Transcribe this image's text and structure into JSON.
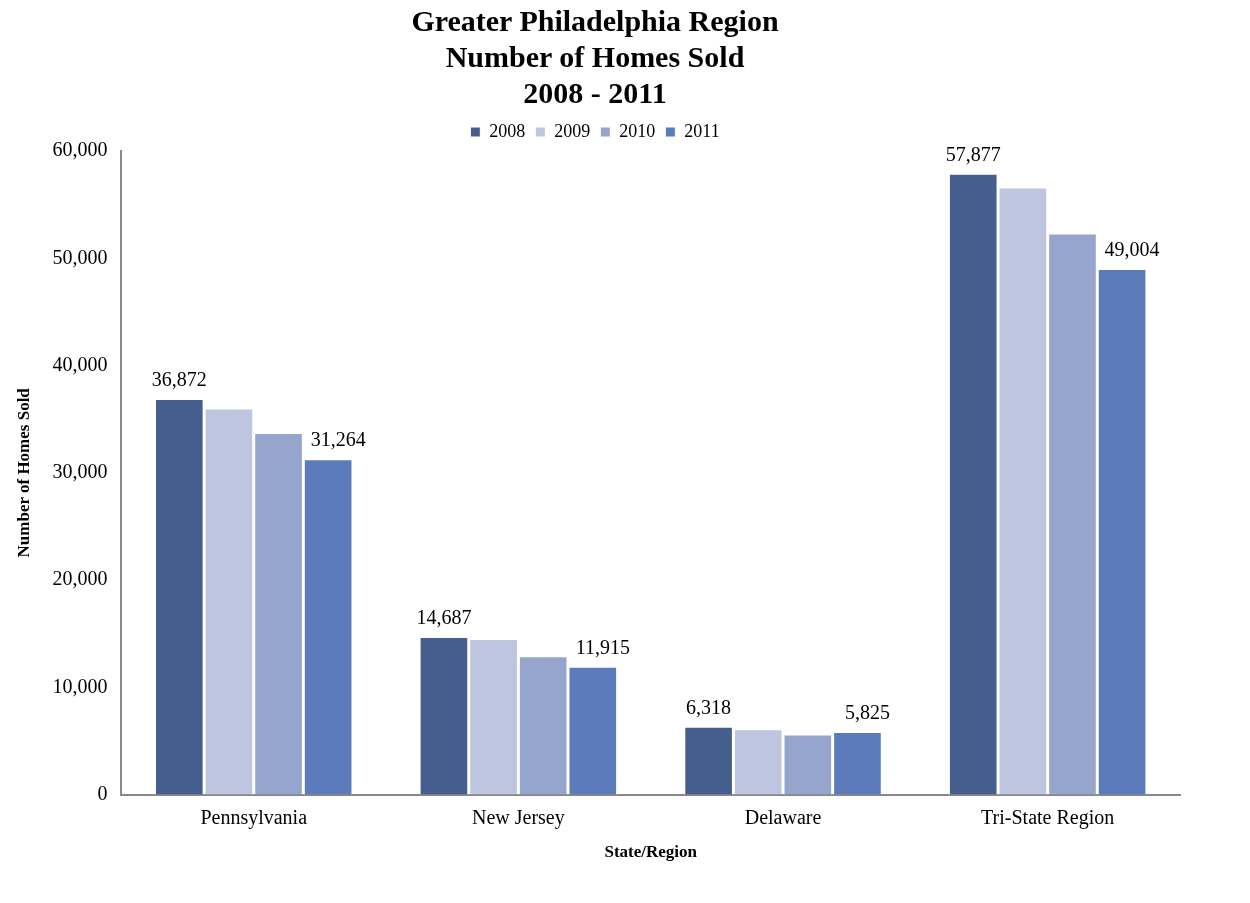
{
  "chart_data": {
    "type": "bar",
    "title": [
      "Greater Philadelphia Region",
      "Number of Homes Sold",
      "2008 - 2011"
    ],
    "xlabel": "State/Region",
    "ylabel": "Number of Homes Sold",
    "categories": [
      "Pennsylvania",
      "New Jersey",
      "Delaware",
      "Tri-State Region"
    ],
    "series": [
      {
        "name": "2008",
        "color": "#465e8e",
        "values": [
          36872,
          14687,
          6318,
          57877
        ],
        "value_labels": [
          "36,872",
          "14,687",
          "6,318",
          "57,877"
        ]
      },
      {
        "name": "2009",
        "color": "#bdc5df",
        "values": [
          36000,
          14500,
          6100,
          56600
        ]
      },
      {
        "name": "2010",
        "color": "#96a5cc",
        "values": [
          33700,
          12900,
          5600,
          52300
        ]
      },
      {
        "name": "2011",
        "color": "#5b7bbb",
        "values": [
          31264,
          11915,
          5825,
          49004
        ],
        "value_labels": [
          "31,264",
          "11,915",
          "5,825",
          "49,004"
        ]
      }
    ],
    "ylim": [
      0,
      60000
    ],
    "yticks": [
      {
        "value": 0,
        "label": "0"
      },
      {
        "value": 10000,
        "label": "10,000"
      },
      {
        "value": 20000,
        "label": "20,000"
      },
      {
        "value": 30000,
        "label": "30,000"
      },
      {
        "value": 40000,
        "label": "40,000"
      },
      {
        "value": 50000,
        "label": "50,000"
      },
      {
        "value": 60000,
        "label": "60,000"
      }
    ],
    "grid": false,
    "legend": "top"
  }
}
